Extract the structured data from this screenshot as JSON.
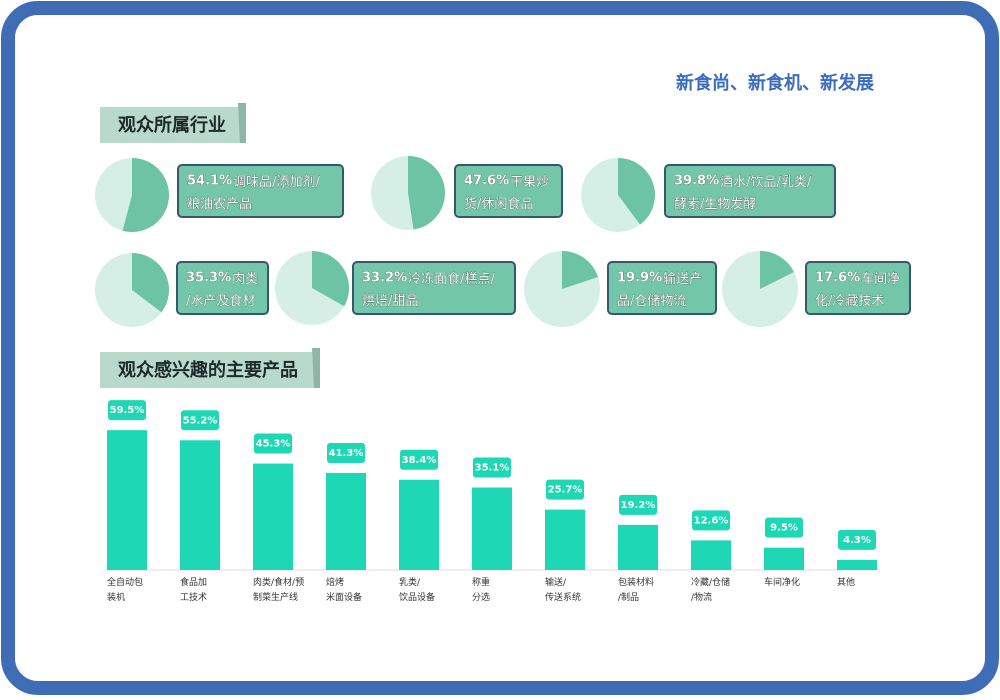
{
  "header": {
    "slogan": "新食尚、新食机、新发展",
    "section1": "观众所属行业",
    "section2": "观众感兴趣的主要产品"
  },
  "chart_data": [
    {
      "type": "pie",
      "categories": [
        "调味品/添加剂/\n粮油农产品"
      ],
      "values": [
        54.1
      ],
      "value_labels": [
        "54.1%"
      ],
      "color": "#6dc4a5"
    },
    {
      "type": "pie",
      "categories": [
        "干果炒\n货/休闲食品"
      ],
      "values": [
        47.6
      ],
      "value_labels": [
        "47.6%"
      ],
      "color": "#6dc4a5"
    },
    {
      "type": "pie",
      "categories": [
        "酒水/饮品/乳类/\n酵素/生物发酵"
      ],
      "values": [
        39.8
      ],
      "value_labels": [
        "39.8%"
      ],
      "color": "#6dc4a5"
    },
    {
      "type": "pie",
      "categories": [
        "肉类\n/水产及食材"
      ],
      "values": [
        35.3
      ],
      "value_labels": [
        "35.3%"
      ],
      "color": "#6dc4a5"
    },
    {
      "type": "pie",
      "categories": [
        "冷冻面食/糕点/\n烘焙/甜品"
      ],
      "values": [
        33.2
      ],
      "value_labels": [
        "33.2%"
      ],
      "color": "#6dc4a5"
    },
    {
      "type": "pie",
      "categories": [
        "输送产\n品/仓储物流"
      ],
      "values": [
        19.9
      ],
      "value_labels": [
        "19.9%"
      ],
      "color": "#6dc4a5"
    },
    {
      "type": "pie",
      "categories": [
        "车间净\n化/冷藏技术"
      ],
      "values": [
        17.6
      ],
      "value_labels": [
        "17.6%"
      ],
      "color": "#6dc4a5"
    },
    {
      "type": "bar",
      "color": "#1ed7b4",
      "categories": [
        "全自动包\n装机",
        "食品加\n工技术",
        "肉类/食材/预\n制菜生产线",
        "焙烤\n米面设备",
        "乳类/\n饮品设备",
        "称重\n分选",
        "输送/\n传送系统",
        "包装材料\n/制品",
        "冷藏/仓储\n/物流",
        "车间净化",
        "其他"
      ],
      "values": [
        59.5,
        55.2,
        45.3,
        41.3,
        38.4,
        35.1,
        25.7,
        19.2,
        12.6,
        9.5,
        4.3
      ],
      "value_labels": [
        "59.5%",
        "55.2%",
        "45.3%",
        "41.3%",
        "38.4%",
        "35.1%",
        "25.7%",
        "19.2%",
        "12.6%",
        "9.5%",
        "4.3%"
      ]
    }
  ]
}
